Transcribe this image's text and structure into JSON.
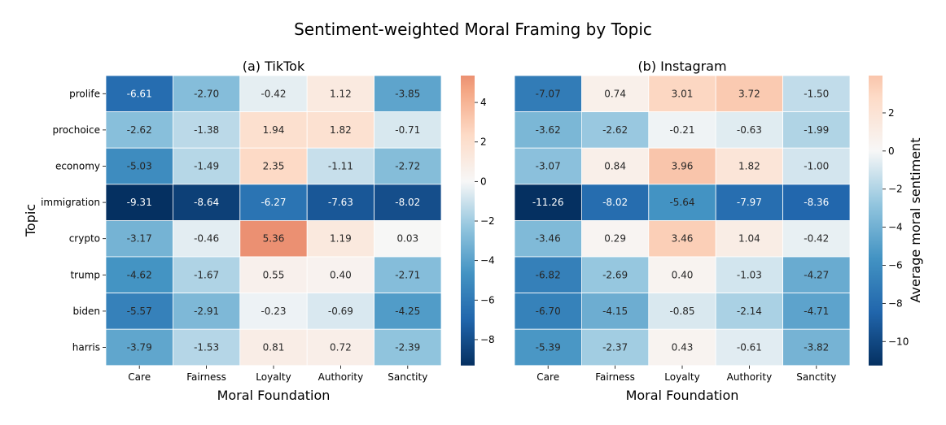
{
  "chart_data": {
    "type": "heatmap",
    "title": "Sentiment-weighted Moral Framing by Topic",
    "ylabel": "Topic",
    "xlabel": "Moral Foundation",
    "colorbar_label": "Average moral sentiment",
    "rows": [
      "prolife",
      "prochoice",
      "economy",
      "immigration",
      "crypto",
      "trump",
      "biden",
      "harris"
    ],
    "columns": [
      "Care",
      "Fairness",
      "Loyalty",
      "Authority",
      "Sanctity"
    ],
    "panels": [
      {
        "subtitle": "(a) TikTok",
        "vmin": -9.31,
        "vmax": 5.36,
        "colorbar_ticks": [
          4,
          2,
          0,
          -2,
          -4,
          -6,
          -8
        ],
        "colorbar_tick_labels": [
          "4",
          "2",
          "0",
          "−2",
          "−4",
          "−6",
          "−8"
        ],
        "values": [
          [
            -6.61,
            -2.7,
            -0.42,
            1.12,
            -3.85
          ],
          [
            -2.62,
            -1.38,
            1.94,
            1.82,
            -0.71
          ],
          [
            -5.03,
            -1.49,
            2.35,
            -1.11,
            -2.72
          ],
          [
            -9.31,
            -8.64,
            -6.27,
            -7.63,
            -8.02
          ],
          [
            -3.17,
            -0.46,
            5.36,
            1.19,
            0.03
          ],
          [
            -4.62,
            -1.67,
            0.55,
            0.4,
            -2.71
          ],
          [
            -5.57,
            -2.91,
            -0.23,
            -0.69,
            -4.25
          ],
          [
            -3.79,
            -1.53,
            0.81,
            0.72,
            -2.39
          ]
        ],
        "labels": [
          [
            "-6.61",
            "-2.70",
            "-0.42",
            "1.12",
            "-3.85"
          ],
          [
            "-2.62",
            "-1.38",
            "1.94",
            "1.82",
            "-0.71"
          ],
          [
            "-5.03",
            "-1.49",
            "2.35",
            "-1.11",
            "-2.72"
          ],
          [
            "-9.31",
            "-8.64",
            "-6.27",
            "-7.63",
            "-8.02"
          ],
          [
            "-3.17",
            "-0.46",
            "5.36",
            "1.19",
            "0.03"
          ],
          [
            "-4.62",
            "-1.67",
            "0.55",
            "0.40",
            "-2.71"
          ],
          [
            "-5.57",
            "-2.91",
            "-0.23",
            "-0.69",
            "-4.25"
          ],
          [
            "-3.79",
            "-1.53",
            "0.81",
            "0.72",
            "-2.39"
          ]
        ]
      },
      {
        "subtitle": "(b) Instagram",
        "vmin": -11.26,
        "vmax": 3.96,
        "colorbar_ticks": [
          2,
          0,
          -2,
          -4,
          -6,
          -8,
          -10
        ],
        "colorbar_tick_labels": [
          "2",
          "0",
          "−2",
          "−4",
          "−6",
          "−8",
          "−10"
        ],
        "values": [
          [
            -7.07,
            0.74,
            3.01,
            3.72,
            -1.5
          ],
          [
            -3.62,
            -2.62,
            -0.21,
            -0.63,
            -1.99
          ],
          [
            -3.07,
            0.84,
            3.96,
            1.82,
            -1.0
          ],
          [
            -11.26,
            -8.02,
            -5.64,
            -7.97,
            -8.36
          ],
          [
            -3.46,
            0.29,
            3.46,
            1.04,
            -0.42
          ],
          [
            -6.82,
            -2.69,
            0.4,
            -1.03,
            -4.27
          ],
          [
            -6.7,
            -4.15,
            -0.85,
            -2.14,
            -4.71
          ],
          [
            -5.39,
            -2.37,
            0.43,
            -0.61,
            -3.82
          ]
        ],
        "labels": [
          [
            "-7.07",
            "0.74",
            "3.01",
            "3.72",
            "-1.50"
          ],
          [
            "-3.62",
            "-2.62",
            "-0.21",
            "-0.63",
            "-1.99"
          ],
          [
            "-3.07",
            "0.84",
            "3.96",
            "1.82",
            "-1.00"
          ],
          [
            "-11.26",
            "-8.02",
            "-5.64",
            "-7.97",
            "-8.36"
          ],
          [
            "-3.46",
            "0.29",
            "3.46",
            "1.04",
            "-0.42"
          ],
          [
            "-6.82",
            "-2.69",
            "0.40",
            "-1.03",
            "-4.27"
          ],
          [
            "-6.70",
            "-4.15",
            "-0.85",
            "-2.14",
            "-4.71"
          ],
          [
            "-5.39",
            "-2.37",
            "0.43",
            "-0.61",
            "-3.82"
          ]
        ]
      }
    ]
  }
}
